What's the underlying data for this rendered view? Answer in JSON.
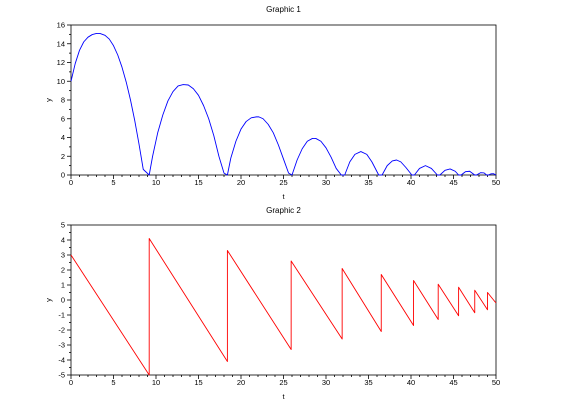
{
  "chart_data": [
    {
      "type": "line",
      "title": "Graphic 1",
      "xlabel": "t",
      "ylabel": "y",
      "xlim": [
        0,
        50
      ],
      "ylim": [
        0,
        16
      ],
      "xticks": [
        0,
        5,
        10,
        15,
        20,
        25,
        30,
        35,
        40,
        45,
        50
      ],
      "yticks": [
        0,
        2,
        4,
        6,
        8,
        10,
        12,
        14,
        16
      ],
      "grid": false,
      "series": [
        {
          "color": "#0000ff",
          "x": [
            0,
            0.5,
            1,
            1.5,
            2,
            2.5,
            3,
            3.4,
            4,
            4.5,
            5,
            5.5,
            6,
            6.5,
            7,
            7.5,
            8,
            8.5,
            9.2,
            9.6,
            10.2,
            10.8,
            11.4,
            12,
            12.6,
            13.2,
            13.8,
            14.4,
            15,
            15.6,
            16.2,
            16.8,
            17.4,
            18,
            18.4,
            18.8,
            19.4,
            20,
            20.6,
            21.2,
            21.8,
            22.1,
            22.6,
            23.2,
            23.8,
            24.4,
            25,
            25.6,
            26,
            26.6,
            27.2,
            27.8,
            28.4,
            28.8,
            29.4,
            30,
            30.6,
            31.2,
            31.8,
            32.2,
            32.8,
            33.4,
            34.1,
            34.8,
            35.4,
            36.2,
            36.6,
            37.2,
            37.8,
            38.3,
            38.8,
            39.4,
            40.1,
            40.4,
            41,
            41.7,
            42.4,
            43.1,
            43.4,
            44,
            44.6,
            45.2,
            45.6,
            45.9,
            46.4,
            46.9,
            47.5,
            47.7,
            48.2,
            48.6,
            48.9,
            49.1,
            49.4,
            49.7,
            50
          ],
          "y": [
            10,
            11.9,
            13.3,
            14.2,
            14.7,
            14.98,
            15.1,
            15.1,
            14.9,
            14.5,
            13.8,
            12.8,
            11.5,
            9.9,
            8.0,
            5.8,
            3.3,
            0.6,
            0.0,
            2.0,
            4.5,
            6.4,
            7.9,
            8.9,
            9.5,
            9.65,
            9.6,
            9.2,
            8.5,
            7.4,
            6.0,
            4.2,
            2.0,
            0.2,
            0.0,
            1.8,
            3.6,
            4.9,
            5.7,
            6.1,
            6.2,
            6.2,
            6.0,
            5.4,
            4.5,
            3.2,
            1.7,
            0.2,
            0.0,
            1.6,
            2.8,
            3.6,
            3.9,
            3.9,
            3.6,
            2.9,
            1.9,
            0.7,
            0.0,
            0.0,
            1.4,
            2.2,
            2.5,
            2.2,
            1.4,
            0.0,
            0.0,
            1.0,
            1.5,
            1.6,
            1.4,
            0.8,
            0.0,
            0.0,
            0.7,
            1.0,
            0.7,
            0.0,
            0.0,
            0.5,
            0.65,
            0.4,
            0.0,
            0.0,
            0.35,
            0.4,
            0.0,
            0.0,
            0.25,
            0.22,
            0.0,
            0.0,
            0.12,
            0.14,
            0.0
          ]
        }
      ]
    },
    {
      "type": "line",
      "title": "Graphic 2",
      "xlabel": "t",
      "ylabel": "y",
      "xlim": [
        0,
        50
      ],
      "ylim": [
        -5,
        5
      ],
      "xticks": [
        0,
        5,
        10,
        15,
        20,
        25,
        30,
        35,
        40,
        45,
        50
      ],
      "yticks": [
        -5,
        -4,
        -3,
        -2,
        -1,
        0,
        1,
        2,
        3,
        4,
        5
      ],
      "grid": false,
      "series": [
        {
          "color": "#ff0000",
          "x": [
            0,
            9.2,
            9.2,
            18.4,
            18.4,
            25.9,
            25.9,
            31.9,
            31.9,
            36.5,
            36.5,
            40.3,
            40.3,
            43.2,
            43.2,
            45.6,
            45.6,
            47.5,
            47.5,
            49.0,
            49.0,
            50
          ],
          "y": [
            3.0,
            -5.0,
            4.1,
            -4.1,
            3.3,
            -3.3,
            2.6,
            -2.6,
            2.1,
            -2.1,
            1.7,
            -1.7,
            1.3,
            -1.3,
            1.05,
            -1.05,
            0.85,
            -0.85,
            0.65,
            -0.65,
            0.5,
            -0.2
          ]
        }
      ]
    }
  ]
}
